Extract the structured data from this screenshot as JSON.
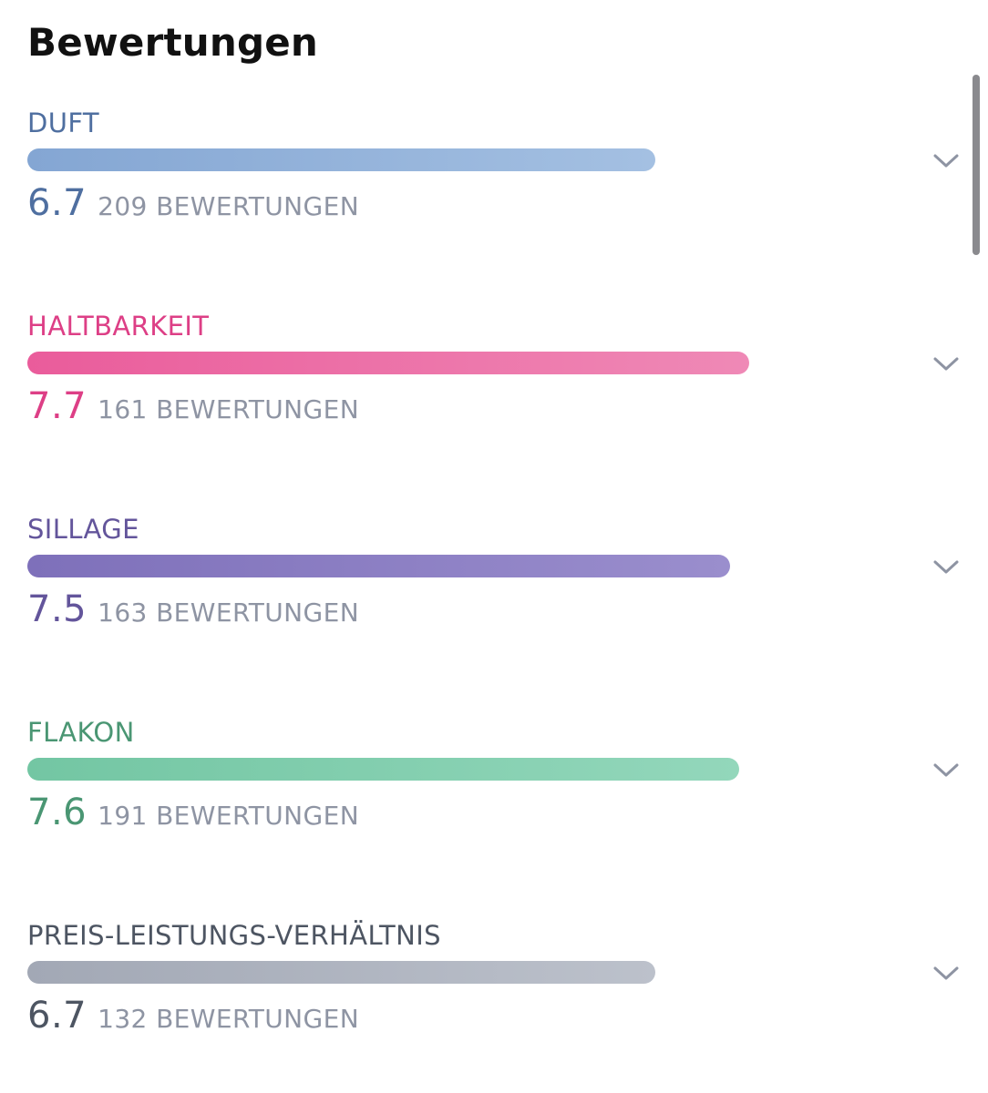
{
  "page": {
    "title": "Bewertungen"
  },
  "ratings": [
    {
      "label": "DUFT",
      "score": "6.7",
      "count_text": "209 BEWERTUNGEN",
      "value": 6.7,
      "label_color": "#4f6fa0",
      "score_color": "#4f6fa0",
      "bar_gradient": [
        "#84a6d3",
        "#a4c0e2"
      ],
      "chevron_icon": "chevron-down-icon"
    },
    {
      "label": "HALTBARKEIT",
      "score": "7.7",
      "count_text": "161 BEWERTUNGEN",
      "value": 7.7,
      "label_color": "#dd3f86",
      "score_color": "#dd3f86",
      "bar_gradient": [
        "#ea5c9b",
        "#ef89b6"
      ],
      "chevron_icon": "chevron-down-icon"
    },
    {
      "label": "SILLAGE",
      "score": "7.5",
      "count_text": "163 BEWERTUNGEN",
      "value": 7.5,
      "label_color": "#63559b",
      "score_color": "#63559b",
      "bar_gradient": [
        "#7e70ba",
        "#9a8ecd"
      ],
      "chevron_icon": "chevron-down-icon"
    },
    {
      "label": "FLAKON",
      "score": "7.6",
      "count_text": "191 BEWERTUNGEN",
      "value": 7.6,
      "label_color": "#4a9673",
      "score_color": "#4a9673",
      "bar_gradient": [
        "#73c6a3",
        "#93d7bb"
      ],
      "chevron_icon": "chevron-down-icon"
    },
    {
      "label": "PREIS-LEISTUNGS-VERHÄLTNIS",
      "score": "6.7",
      "count_text": "132 BEWERTUNGEN",
      "value": 6.7,
      "label_color": "#4d5562",
      "score_color": "#4d5562",
      "bar_gradient": [
        "#a2a8b5",
        "#bcc1cb"
      ],
      "chevron_icon": "chevron-down-icon"
    }
  ]
}
